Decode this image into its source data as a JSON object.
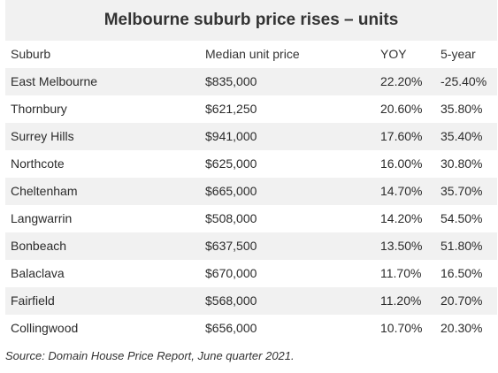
{
  "title": "Melbourne suburb price rises – units",
  "headers": [
    "Suburb",
    "Median unit price",
    "YOY",
    "5-year"
  ],
  "rows": [
    [
      "East Melbourne",
      "$835,000",
      "22.20%",
      "-25.40%"
    ],
    [
      "Thornbury",
      "$621,250",
      "20.60%",
      "35.80%"
    ],
    [
      "Surrey Hills",
      "$941,000",
      "17.60%",
      "35.40%"
    ],
    [
      "Northcote",
      "$625,000",
      "16.00%",
      "30.80%"
    ],
    [
      "Cheltenham",
      "$665,000",
      "14.70%",
      "35.70%"
    ],
    [
      "Langwarrin",
      "$508,000",
      "14.20%",
      "54.50%"
    ],
    [
      "Bonbeach",
      "$637,500",
      "13.50%",
      "51.80%"
    ],
    [
      "Balaclava",
      "$670,000",
      "11.70%",
      "16.50%"
    ],
    [
      "Fairfield",
      "$568,000",
      "11.20%",
      "20.70%"
    ],
    [
      "Collingwood",
      "$656,000",
      "10.70%",
      "20.30%"
    ]
  ],
  "source": "Source: Domain House Price Report, June quarter 2021."
}
